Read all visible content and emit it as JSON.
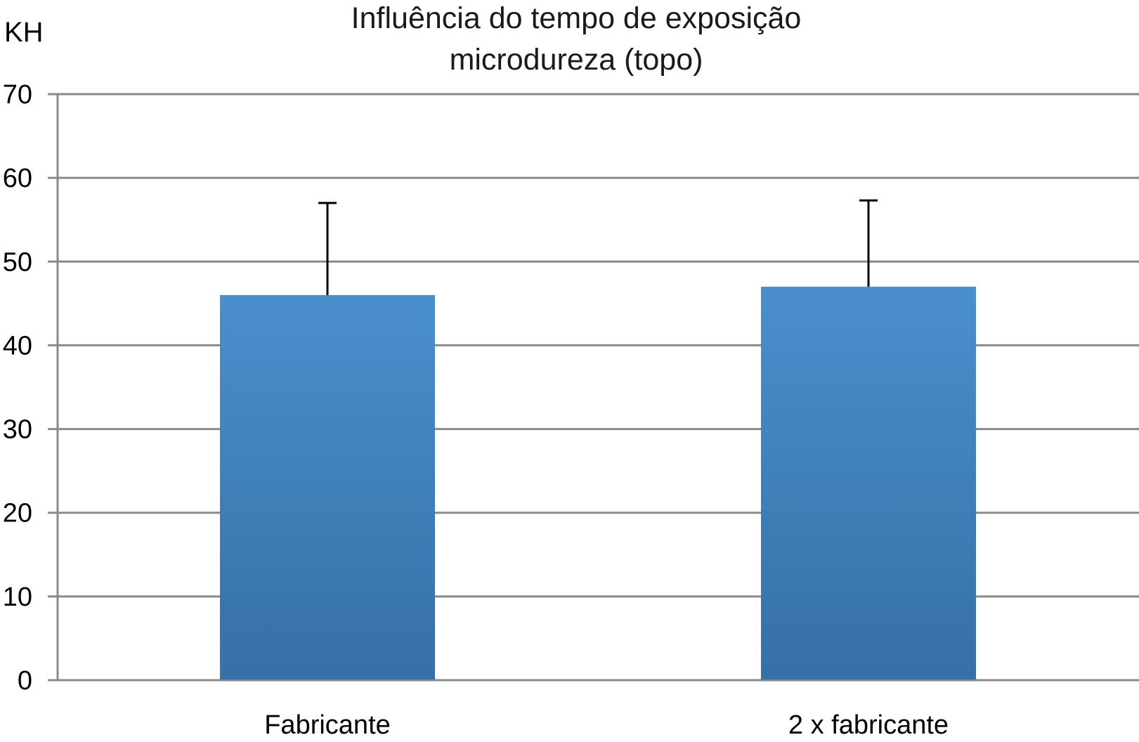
{
  "chart_data": {
    "type": "bar",
    "title": [
      "Influência do tempo de exposição",
      "microdureza (topo)"
    ],
    "ylabel": "KH",
    "xlabel": "",
    "categories": [
      "Fabricante",
      "2 x fabricante"
    ],
    "values": [
      46,
      47
    ],
    "error_upper": [
      57,
      57.3
    ],
    "ylim": [
      0,
      70
    ],
    "yticks": [
      0,
      10,
      20,
      30,
      40,
      50,
      60,
      70
    ],
    "grid": true,
    "legend": "none",
    "colors": {
      "bar_top": "#4a8fcd",
      "bar_bottom": "#3670a6",
      "grid": "#8a8a8a",
      "error_bar": "#000000"
    }
  }
}
